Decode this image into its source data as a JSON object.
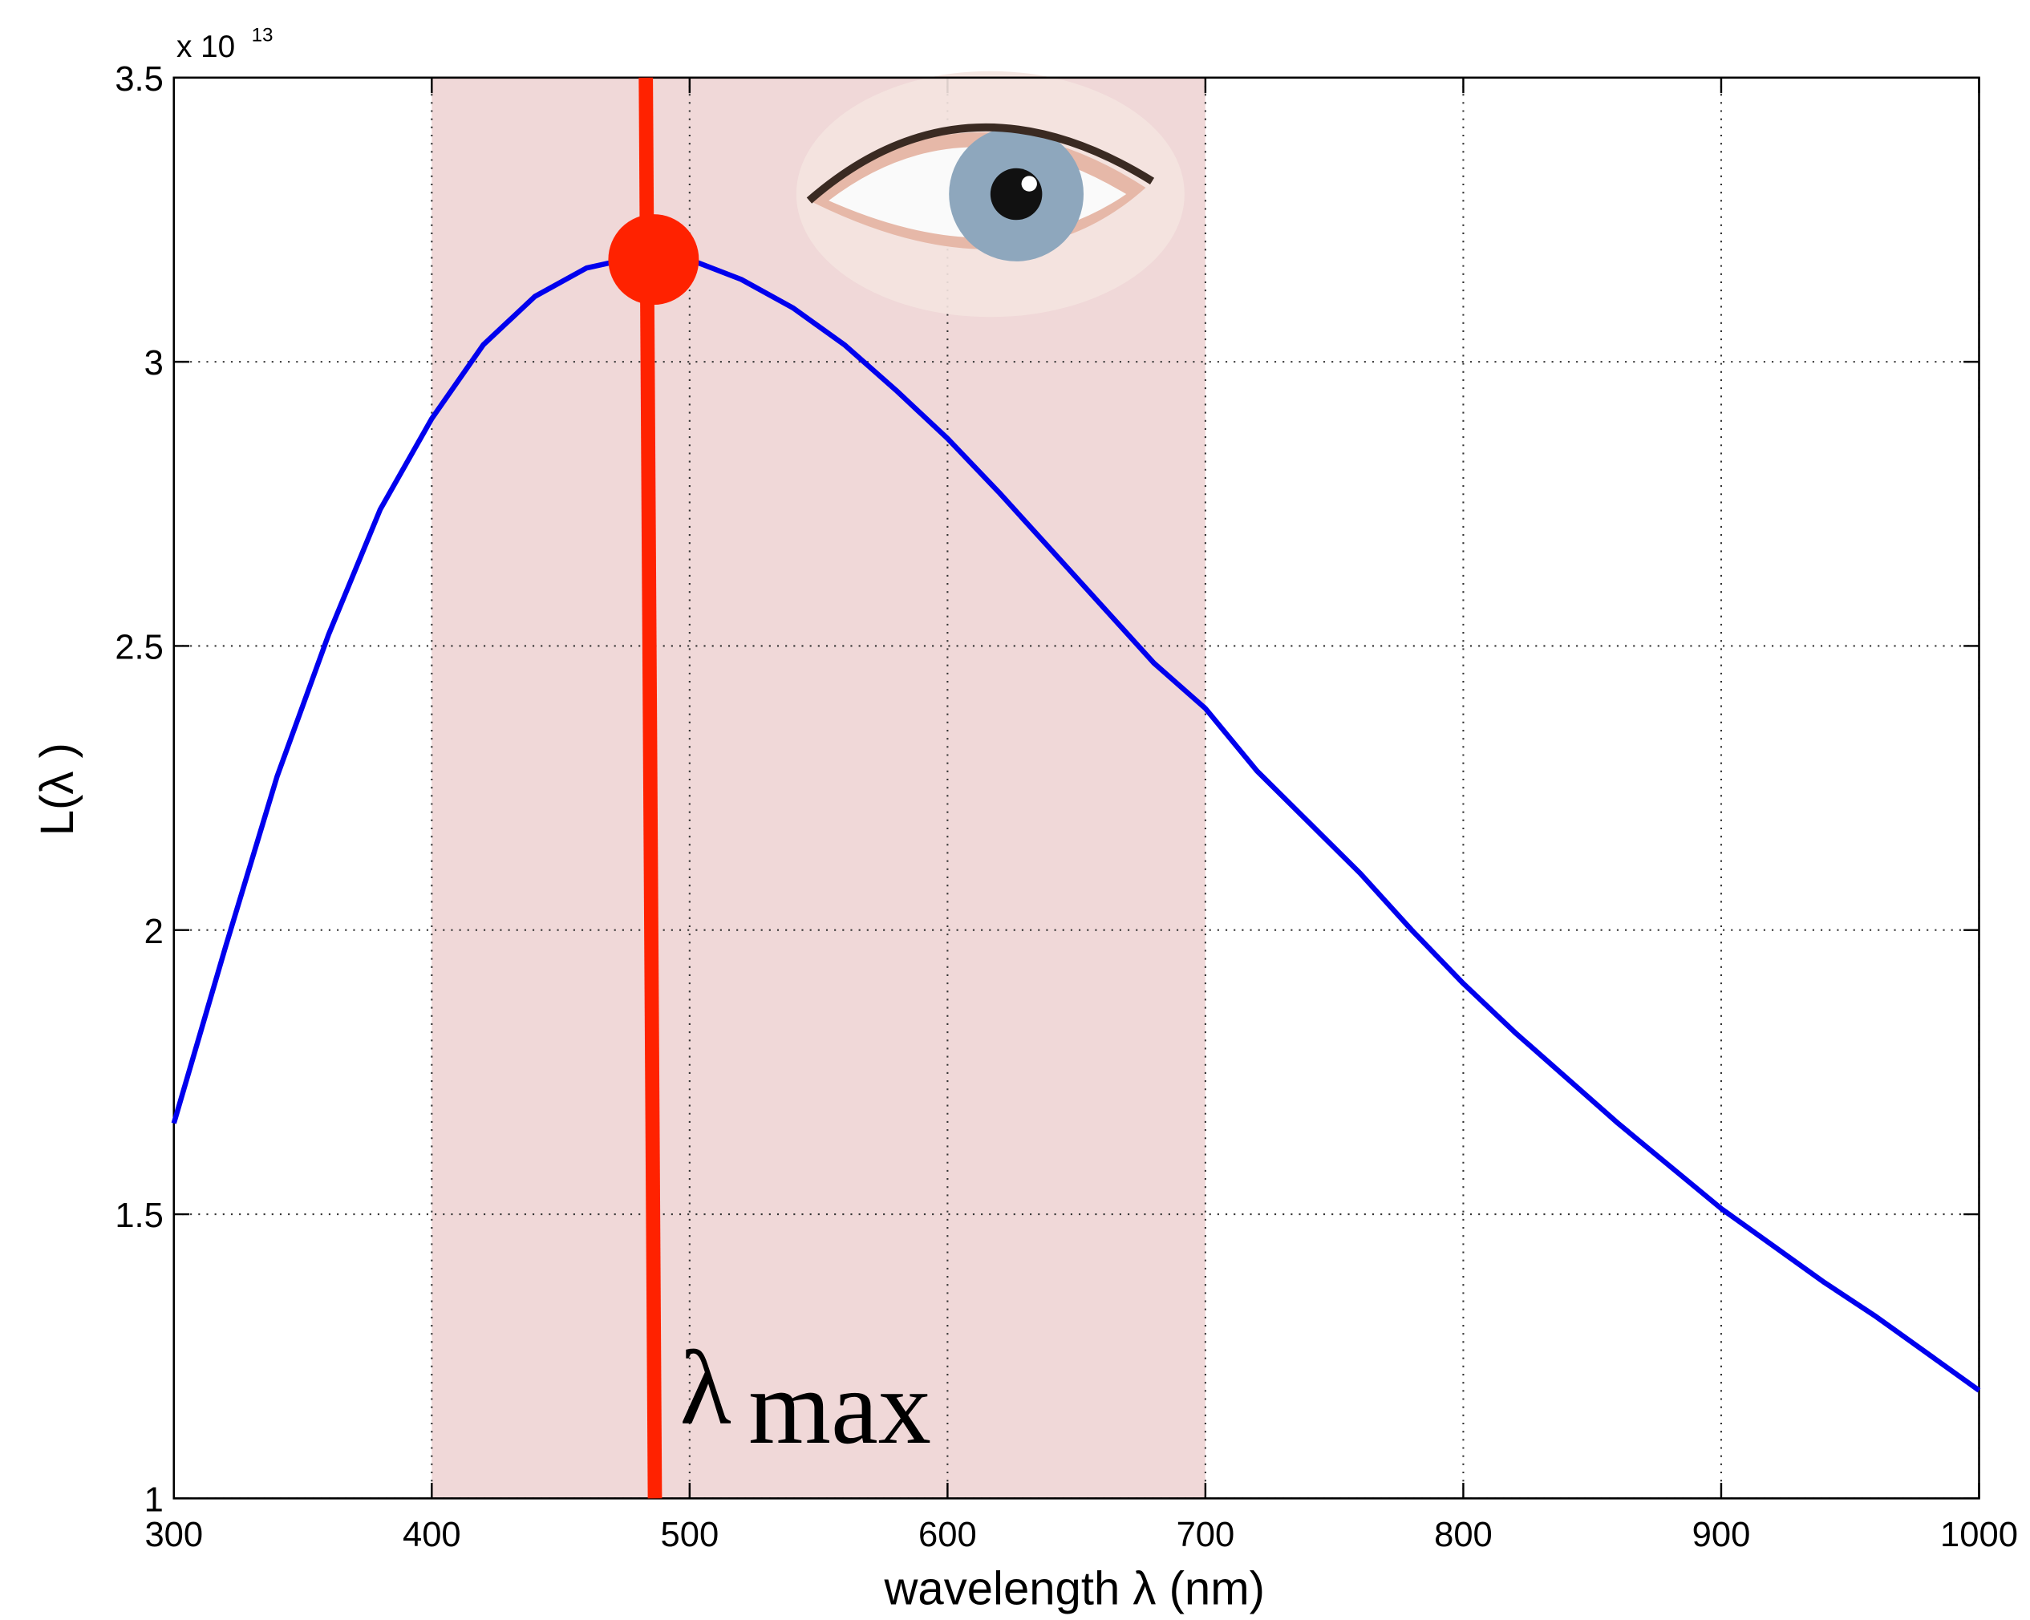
{
  "chart_data": {
    "type": "line",
    "xlabel": "wavelength λ  (nm)",
    "ylabel": "L(λ )",
    "multiplier": {
      "base": "x 10",
      "exponent": "13"
    },
    "annotation": {
      "symbol": "λ",
      "subscript": "max"
    },
    "x": [
      300,
      320,
      340,
      360,
      380,
      400,
      420,
      440,
      460,
      480,
      500,
      520,
      540,
      560,
      580,
      600,
      620,
      640,
      660,
      680,
      700,
      720,
      740,
      760,
      780,
      800,
      820,
      840,
      860,
      880,
      900,
      920,
      940,
      960,
      980,
      1000
    ],
    "series": [
      {
        "color": "#0000ee",
        "values": [
          1.66,
          1.97,
          2.27,
          2.52,
          2.74,
          2.9,
          3.03,
          3.115,
          3.165,
          3.185,
          3.18,
          3.145,
          3.095,
          3.03,
          2.95,
          2.865,
          2.77,
          2.67,
          2.57,
          2.47,
          2.39,
          2.28,
          2.19,
          2.1,
          2.0,
          1.906,
          1.82,
          1.74,
          1.66,
          1.585,
          1.51,
          1.445,
          1.38,
          1.32,
          1.255,
          1.19
        ]
      }
    ],
    "shaded_region": {
      "x": [
        400,
        700
      ],
      "color": "#f0d8d8"
    },
    "peak": {
      "x": 480,
      "y": 3.18,
      "color": "#ff2200"
    },
    "xlim": [
      300,
      1000
    ],
    "ylim": [
      1,
      3.5
    ],
    "xticks": [
      300,
      400,
      500,
      600,
      700,
      800,
      900,
      1000
    ],
    "yticks": [
      1,
      1.5,
      2,
      2.5,
      3,
      3.5
    ],
    "grid": true
  }
}
